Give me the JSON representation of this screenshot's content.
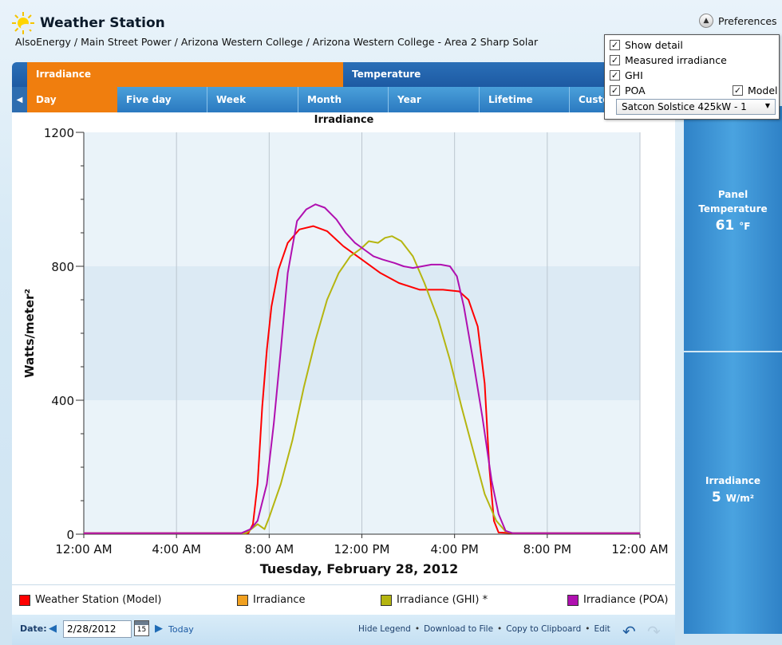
{
  "header": {
    "title": "Weather Station",
    "breadcrumb": "AlsoEnergy / Main Street Power / Arizona Western College / Arizona Western College - Area 2 Sharp Solar",
    "preferences_label": "Preferences"
  },
  "tabs_primary": [
    {
      "label": "Irradiance",
      "active": true
    },
    {
      "label": "Temperature",
      "active": false
    }
  ],
  "tabs_range": [
    {
      "label": "Day",
      "active": true
    },
    {
      "label": "Five day",
      "active": false
    },
    {
      "label": "Week",
      "active": false
    },
    {
      "label": "Month",
      "active": false
    },
    {
      "label": "Year",
      "active": false
    },
    {
      "label": "Lifetime",
      "active": false
    },
    {
      "label": "Custo",
      "active": false
    }
  ],
  "preferences_popup": {
    "show_detail": {
      "label": "Show detail",
      "checked": true
    },
    "measured_irradiance": {
      "label": "Measured irradiance",
      "checked": true
    },
    "ghi": {
      "label": "GHI",
      "checked": true
    },
    "poa": {
      "label": "POA",
      "checked": true
    },
    "model": {
      "label": "Model",
      "checked": true
    },
    "model_select": "Satcon Solstice 425kW - 1"
  },
  "side_panel": {
    "panel_temp_label_1": "Panel",
    "panel_temp_label_2": "Temperature",
    "panel_temp_value": "61",
    "panel_temp_unit": "°F",
    "irradiance_label": "Irradiance",
    "irradiance_value": "5",
    "irradiance_unit": "W/m²"
  },
  "legend": [
    {
      "label": "Weather Station (Model)",
      "color": "#ff0000"
    },
    {
      "label": "Irradiance",
      "color": "#f0a020"
    },
    {
      "label": "Irradiance (GHI) *",
      "color": "#b5b510"
    },
    {
      "label": "Irradiance (POA)",
      "color": "#b010b0"
    }
  ],
  "bottombar": {
    "date_label": "Date:",
    "date_value": "2/28/2012",
    "calendar_day": "15",
    "today_label": "Today",
    "hide_legend": "Hide Legend",
    "download": "Download to File",
    "copy": "Copy to Clipboard",
    "edit": "Edit",
    "bullet": "•"
  },
  "chart_data": {
    "type": "line",
    "title": "Irradiance",
    "xlabel": "Tuesday, February 28, 2012",
    "ylabel": "Watts/meter²",
    "ylim": [
      0,
      1200
    ],
    "yticks": [
      0,
      400,
      800,
      1200
    ],
    "xlim": [
      0,
      24
    ],
    "xticks": [
      {
        "hour": 0,
        "label": "12:00 AM"
      },
      {
        "hour": 4,
        "label": "4:00 AM"
      },
      {
        "hour": 8,
        "label": "8:00 AM"
      },
      {
        "hour": 12,
        "label": "12:00 PM"
      },
      {
        "hour": 16,
        "label": "4:00 PM"
      },
      {
        "hour": 20,
        "label": "8:00 PM"
      },
      {
        "hour": 24,
        "label": "12:00 AM"
      }
    ],
    "grid": true,
    "series": [
      {
        "name": "Weather Station (Model)",
        "color": "#ff0000",
        "points": [
          [
            0,
            3
          ],
          [
            7.1,
            3
          ],
          [
            7.3,
            30
          ],
          [
            7.5,
            150
          ],
          [
            7.7,
            380
          ],
          [
            7.9,
            550
          ],
          [
            8.1,
            680
          ],
          [
            8.4,
            790
          ],
          [
            8.8,
            870
          ],
          [
            9.3,
            910
          ],
          [
            9.9,
            920
          ],
          [
            10.5,
            905
          ],
          [
            11.2,
            860
          ],
          [
            12.0,
            820
          ],
          [
            12.8,
            780
          ],
          [
            13.6,
            750
          ],
          [
            14.5,
            730
          ],
          [
            15.5,
            730
          ],
          [
            16.2,
            725
          ],
          [
            16.6,
            700
          ],
          [
            17.0,
            620
          ],
          [
            17.3,
            450
          ],
          [
            17.5,
            200
          ],
          [
            17.7,
            40
          ],
          [
            17.9,
            5
          ],
          [
            18.5,
            3
          ],
          [
            24,
            3
          ]
        ]
      },
      {
        "name": "Irradiance (GHI) *",
        "color": "#b5b510",
        "points": [
          [
            0,
            3
          ],
          [
            7.0,
            3
          ],
          [
            7.5,
            30
          ],
          [
            7.8,
            15
          ],
          [
            8.0,
            50
          ],
          [
            8.5,
            150
          ],
          [
            9.0,
            280
          ],
          [
            9.5,
            440
          ],
          [
            10.0,
            580
          ],
          [
            10.5,
            700
          ],
          [
            11.0,
            780
          ],
          [
            11.5,
            830
          ],
          [
            12.0,
            855
          ],
          [
            12.3,
            875
          ],
          [
            12.7,
            870
          ],
          [
            13.0,
            885
          ],
          [
            13.3,
            890
          ],
          [
            13.7,
            875
          ],
          [
            14.2,
            830
          ],
          [
            14.7,
            750
          ],
          [
            15.3,
            640
          ],
          [
            15.8,
            520
          ],
          [
            16.3,
            380
          ],
          [
            16.8,
            250
          ],
          [
            17.3,
            120
          ],
          [
            17.8,
            40
          ],
          [
            18.2,
            8
          ],
          [
            18.5,
            3
          ],
          [
            24,
            3
          ]
        ]
      },
      {
        "name": "Irradiance (POA)",
        "color": "#b010b0",
        "points": [
          [
            0,
            3
          ],
          [
            6.8,
            3
          ],
          [
            7.2,
            15
          ],
          [
            7.5,
            40
          ],
          [
            7.9,
            150
          ],
          [
            8.2,
            330
          ],
          [
            8.5,
            550
          ],
          [
            8.8,
            780
          ],
          [
            9.2,
            935
          ],
          [
            9.6,
            970
          ],
          [
            10.0,
            985
          ],
          [
            10.4,
            975
          ],
          [
            10.9,
            940
          ],
          [
            11.3,
            900
          ],
          [
            11.7,
            870
          ],
          [
            12.1,
            850
          ],
          [
            12.5,
            830
          ],
          [
            12.9,
            820
          ],
          [
            13.4,
            810
          ],
          [
            13.8,
            800
          ],
          [
            14.2,
            795
          ],
          [
            14.6,
            800
          ],
          [
            15.0,
            805
          ],
          [
            15.4,
            805
          ],
          [
            15.8,
            800
          ],
          [
            16.1,
            770
          ],
          [
            16.4,
            680
          ],
          [
            16.8,
            520
          ],
          [
            17.2,
            350
          ],
          [
            17.6,
            160
          ],
          [
            17.9,
            60
          ],
          [
            18.2,
            10
          ],
          [
            18.5,
            3
          ],
          [
            24,
            3
          ]
        ]
      }
    ]
  }
}
